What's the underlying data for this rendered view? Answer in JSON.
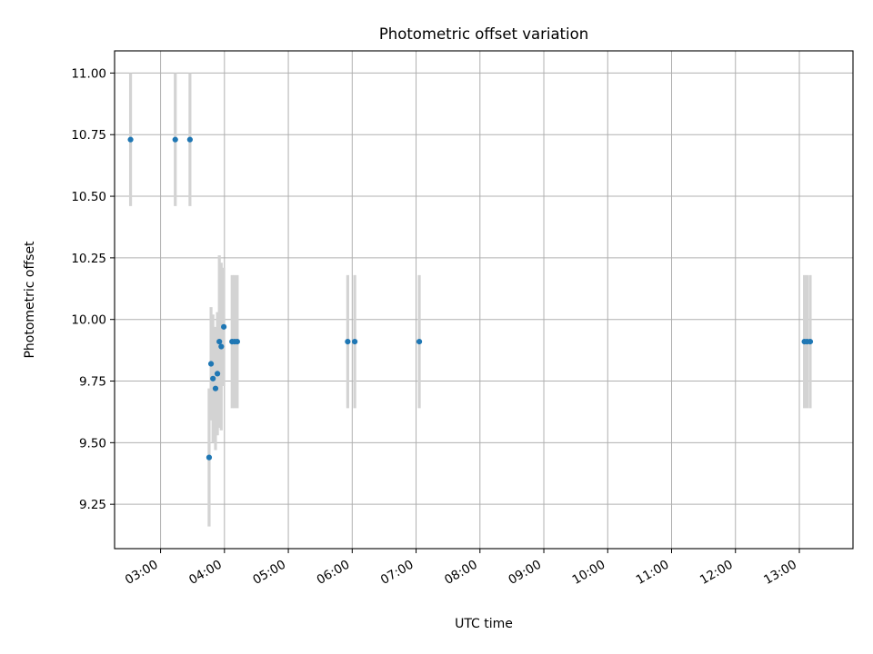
{
  "chart_data": {
    "type": "scatter",
    "title": "Photometric offset variation",
    "xlabel": "UTC time",
    "ylabel": "Photometric offset",
    "x_unit": "hours UTC",
    "xlim": [
      2.28,
      13.84
    ],
    "ylim": [
      9.07,
      11.09
    ],
    "x_ticks": [
      {
        "value": 3,
        "label": "03:00"
      },
      {
        "value": 4,
        "label": "04:00"
      },
      {
        "value": 5,
        "label": "05:00"
      },
      {
        "value": 6,
        "label": "06:00"
      },
      {
        "value": 7,
        "label": "07:00"
      },
      {
        "value": 8,
        "label": "08:00"
      },
      {
        "value": 9,
        "label": "09:00"
      },
      {
        "value": 10,
        "label": "10:00"
      },
      {
        "value": 11,
        "label": "11:00"
      },
      {
        "value": 12,
        "label": "12:00"
      },
      {
        "value": 13,
        "label": "13:00"
      }
    ],
    "y_ticks": [
      {
        "value": 9.25,
        "label": "9.25"
      },
      {
        "value": 9.5,
        "label": "9.50"
      },
      {
        "value": 9.75,
        "label": "9.75"
      },
      {
        "value": 10.0,
        "label": "10.00"
      },
      {
        "value": 10.25,
        "label": "10.25"
      },
      {
        "value": 10.5,
        "label": "10.50"
      },
      {
        "value": 10.75,
        "label": "10.75"
      },
      {
        "value": 11.0,
        "label": "11.00"
      }
    ],
    "grid": true,
    "marker_color": "#1f77b4",
    "errorbar_color": "#d3d3d3",
    "points": [
      {
        "x": 2.53,
        "y": 10.73,
        "err": 0.27
      },
      {
        "x": 3.23,
        "y": 10.73,
        "err": 0.27
      },
      {
        "x": 3.46,
        "y": 10.73,
        "err": 0.27
      },
      {
        "x": 3.76,
        "y": 9.44,
        "err": 0.28
      },
      {
        "x": 3.79,
        "y": 9.82,
        "err": 0.23
      },
      {
        "x": 3.82,
        "y": 9.76,
        "err": 0.26
      },
      {
        "x": 3.86,
        "y": 9.72,
        "err": 0.25
      },
      {
        "x": 3.89,
        "y": 9.78,
        "err": 0.25
      },
      {
        "x": 3.92,
        "y": 9.91,
        "err": 0.35
      },
      {
        "x": 3.95,
        "y": 9.89,
        "err": 0.34
      },
      {
        "x": 3.99,
        "y": 9.97,
        "err": 0.24
      },
      {
        "x": 4.12,
        "y": 9.91,
        "err": 0.27
      },
      {
        "x": 4.16,
        "y": 9.91,
        "err": 0.27
      },
      {
        "x": 4.2,
        "y": 9.91,
        "err": 0.27
      },
      {
        "x": 5.93,
        "y": 9.91,
        "err": 0.27
      },
      {
        "x": 6.04,
        "y": 9.91,
        "err": 0.27
      },
      {
        "x": 7.05,
        "y": 9.91,
        "err": 0.27
      },
      {
        "x": 13.08,
        "y": 9.91,
        "err": 0.27
      },
      {
        "x": 13.12,
        "y": 9.91,
        "err": 0.27
      },
      {
        "x": 13.17,
        "y": 9.91,
        "err": 0.27
      }
    ]
  }
}
